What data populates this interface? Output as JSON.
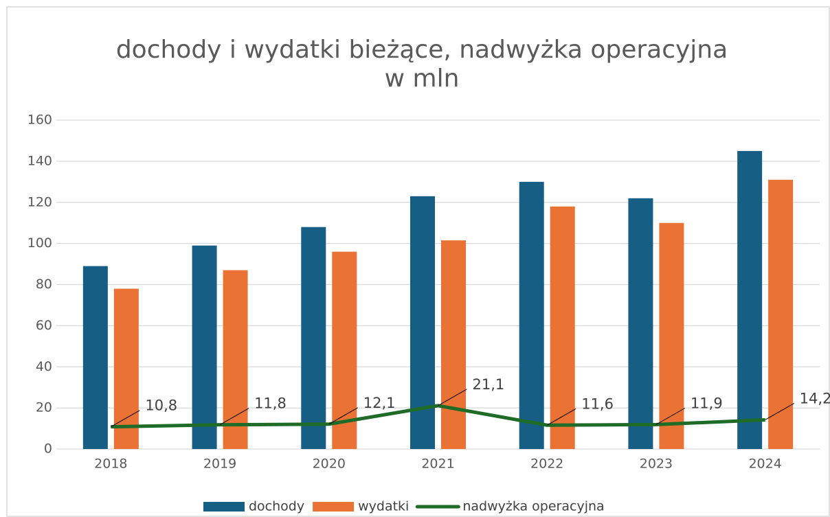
{
  "chart_data": {
    "type": "bar",
    "title": "dochody i wydatki bieżące, nadwyżka operacyjna",
    "subtitle": "w mln",
    "categories": [
      "2018",
      "2019",
      "2020",
      "2021",
      "2022",
      "2023",
      "2024"
    ],
    "series": [
      {
        "name": "dochody",
        "type": "bar",
        "color": "#175e84",
        "values": [
          89,
          99,
          108,
          123,
          130,
          122,
          145
        ]
      },
      {
        "name": "wydatki",
        "type": "bar",
        "color": "#ea7234",
        "values": [
          78,
          87,
          96,
          101.5,
          118,
          110,
          131
        ]
      },
      {
        "name": "nadwyżka operacyjna",
        "type": "line",
        "color": "#1f6b28",
        "values": [
          10.8,
          11.8,
          12.1,
          21.1,
          11.6,
          11.9,
          14.2
        ],
        "value_labels": [
          "10,8",
          "11,8",
          "12,1",
          "21,1",
          "11,6",
          "11,9",
          "14,2"
        ]
      }
    ],
    "ylim": [
      0,
      160
    ],
    "yticks": [
      0,
      20,
      40,
      60,
      80,
      100,
      120,
      140,
      160
    ],
    "grid": true,
    "legend": "bottom"
  }
}
